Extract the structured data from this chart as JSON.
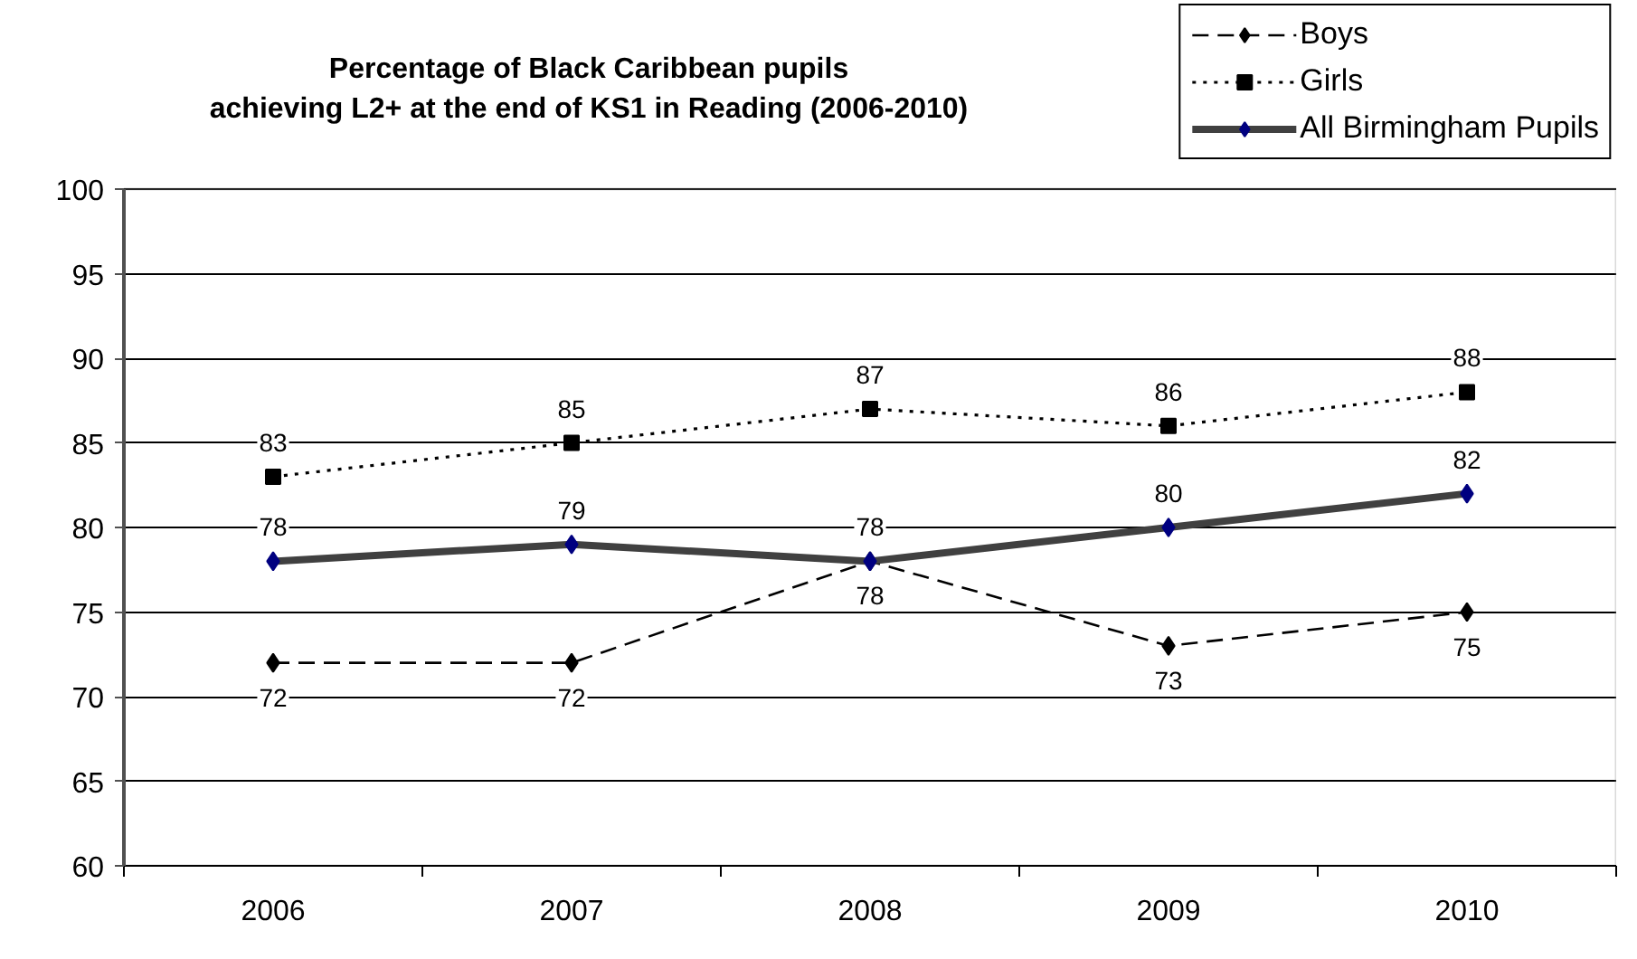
{
  "chart_data": {
    "type": "line",
    "title": "Percentage of Black Caribbean pupils\nachieving L2+ at the end of KS1 in Reading (2006-2010)",
    "categories": [
      "2006",
      "2007",
      "2008",
      "2009",
      "2010"
    ],
    "series": [
      {
        "name": "Boys",
        "color": "#000000",
        "marker": "diamond",
        "line_style": "dashed",
        "values": [
          72,
          72,
          78,
          73,
          75
        ]
      },
      {
        "name": "Girls",
        "color": "#000000",
        "marker": "square",
        "line_style": "dotted",
        "values": [
          83,
          85,
          87,
          86,
          88
        ]
      },
      {
        "name": "All Birmingham Pupils",
        "color": "#404040",
        "colors": [
          "#000080",
          "#000080",
          "#000080",
          "#000080",
          "#000080"
        ],
        "marker": "diamond",
        "line_style": "solid",
        "values": [
          78,
          79,
          78,
          80,
          82
        ]
      }
    ],
    "ylim": [
      60,
      100
    ],
    "yticks": [
      60,
      65,
      70,
      75,
      80,
      85,
      90,
      95,
      100
    ],
    "grid": "y",
    "legend": "top right",
    "data_labels": true
  }
}
